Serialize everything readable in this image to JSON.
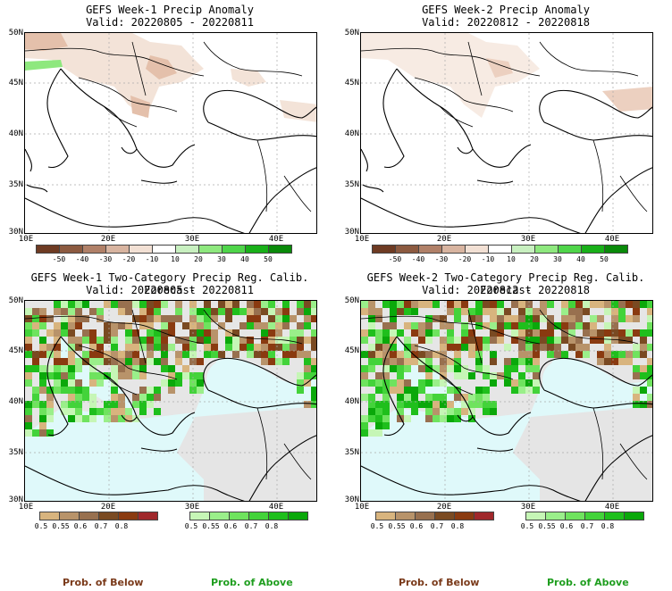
{
  "panels": [
    {
      "title": "GEFS Week-1 Precip Anomaly",
      "valid": "Valid: 20220805 - 20220811"
    },
    {
      "title": "GEFS Week-2 Precip Anomaly",
      "valid": "Valid: 20220812 - 20220818"
    },
    {
      "title": "GEFS Week-1 Two-Category Precip Reg. Calib. Forecast",
      "valid": "Valid: 20220805 - 20220811"
    },
    {
      "title": "GEFS Week-2 Two-Category Precip Reg. Calib. Forecast",
      "valid": "Valid: 20220812 - 20220818"
    }
  ],
  "axes": {
    "lat_labels": [
      "50N",
      "45N",
      "40N",
      "35N",
      "30N"
    ],
    "lon_labels": [
      "10E",
      "20E",
      "30E",
      "40E"
    ]
  },
  "anomaly_colorbar": {
    "ticks": [
      "-50",
      "-40",
      "-30",
      "-20",
      "-10",
      "10",
      "20",
      "30",
      "40",
      "50"
    ],
    "colors": [
      "#6e3b23",
      "#8c5a40",
      "#b08068",
      "#d8b4a0",
      "#f2e0d4",
      "#ffffff",
      "#c8f0c0",
      "#8ee87e",
      "#4fd54a",
      "#19b019",
      "#0a8a0a"
    ]
  },
  "prob_colorbars": {
    "below": {
      "ticks": [
        "0.5",
        "0.55",
        "0.6",
        "0.7",
        "0.8"
      ],
      "colors": [
        "#d8b47e",
        "#b8936a",
        "#98704f",
        "#7a4a22",
        "#8a3a10",
        "#a0272a"
      ]
    },
    "above": {
      "ticks": [
        "0.5",
        "0.55",
        "0.6",
        "0.7",
        "0.8"
      ],
      "colors": [
        "#c6f6b6",
        "#9aef8a",
        "#6fe35e",
        "#43d33a",
        "#1fbf1c",
        "#0aa80a"
      ]
    }
  },
  "legend": {
    "prob_below": "Prob. of Below",
    "prob_above": "Prob. of Above"
  },
  "colors": {
    "sea_prob": "#dff9fa",
    "no_signal": "#e5e5e5",
    "dry_light": "#f2ddd0",
    "dry_mid": "#e3bba6"
  }
}
